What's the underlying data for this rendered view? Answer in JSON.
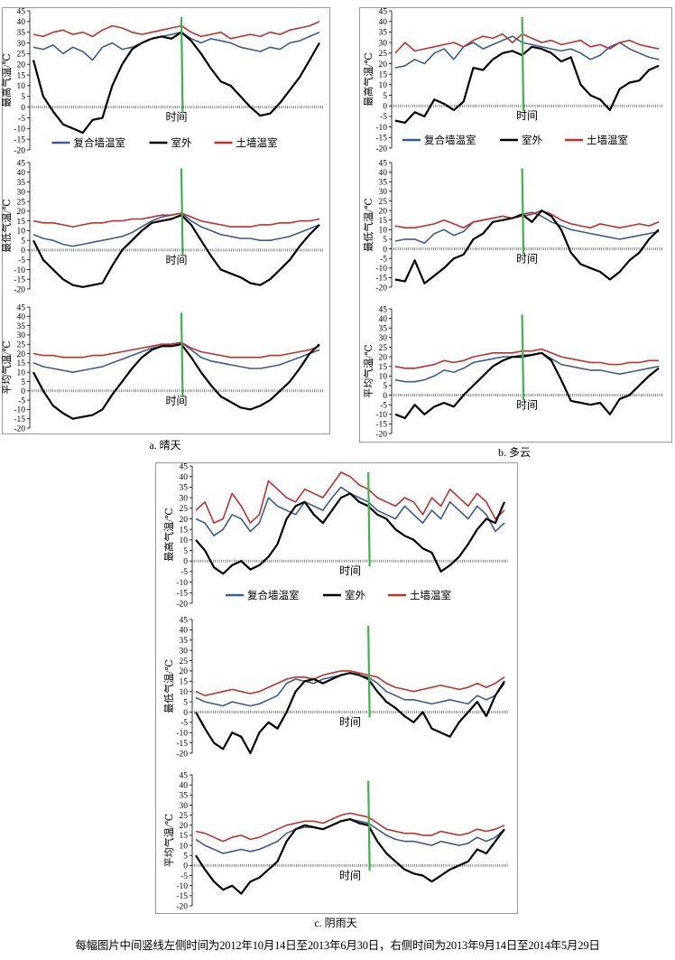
{
  "captions": {
    "a": "a. 晴天",
    "b": "b. 多云",
    "c": "c. 阴雨天"
  },
  "footnote": "每幅图片中间竖线左侧时间为2012年10月14日至2013年6月30日，右侧时间为2013年9月14日至2014年5月29日",
  "legend": {
    "composite": "复合墙温室",
    "outdoor": "室外",
    "soil": "土墙温室"
  },
  "xlabel": "时间",
  "ylabels": {
    "max": "最高气温/℃",
    "min": "最低气温/℃",
    "avg": "平均气温/℃"
  },
  "colors": {
    "composite": "#3b5b93",
    "outdoor": "#000000",
    "soil": "#c0302b",
    "divider": "#3db34a"
  },
  "chart_data": [
    {
      "id": "a-max",
      "type": "line",
      "ylabel": "最高气温/℃",
      "xlabel": "时间",
      "ylim": [
        -20,
        45
      ],
      "yticks": [
        -20,
        -15,
        -10,
        -5,
        0,
        5,
        10,
        15,
        20,
        25,
        30,
        35,
        40,
        45
      ],
      "series": [
        {
          "name": "复合墙温室",
          "values": [
            28,
            27,
            29,
            25,
            28,
            26,
            22,
            28,
            30,
            27,
            28,
            30,
            32,
            33,
            34,
            35,
            32,
            30,
            32,
            31,
            30,
            28,
            27,
            26,
            28,
            27,
            30,
            31,
            33,
            35
          ]
        },
        {
          "name": "室外",
          "values": [
            22,
            5,
            -2,
            -8,
            -10,
            -12,
            -6,
            -5,
            10,
            20,
            27,
            30,
            32,
            33,
            32,
            35,
            31,
            25,
            18,
            12,
            10,
            5,
            0,
            -4,
            -3,
            2,
            8,
            14,
            22,
            30
          ]
        },
        {
          "name": "土墙温室",
          "values": [
            34,
            33,
            35,
            36,
            34,
            35,
            33,
            36,
            38,
            37,
            35,
            34,
            35,
            36,
            37,
            38,
            35,
            33,
            34,
            35,
            32,
            33,
            34,
            33,
            35,
            34,
            36,
            37,
            38,
            40
          ]
        }
      ],
      "divider_index": 15
    },
    {
      "id": "a-min",
      "type": "line",
      "ylabel": "最低气温/℃",
      "xlabel": "时间",
      "ylim": [
        -20,
        45
      ],
      "yticks": [
        -20,
        -15,
        -10,
        -5,
        0,
        5,
        10,
        15,
        20,
        25,
        30,
        35,
        40,
        45
      ],
      "series": [
        {
          "name": "复合墙温室",
          "values": [
            8,
            6,
            5,
            3,
            2,
            3,
            4,
            5,
            6,
            7,
            9,
            12,
            15,
            17,
            18,
            19,
            15,
            12,
            10,
            8,
            7,
            6,
            6,
            5,
            5,
            6,
            7,
            9,
            11,
            13
          ]
        },
        {
          "name": "室外",
          "values": [
            5,
            -5,
            -10,
            -15,
            -18,
            -19,
            -18,
            -17,
            -8,
            0,
            5,
            10,
            14,
            15,
            16,
            18,
            13,
            5,
            -3,
            -10,
            -12,
            -14,
            -17,
            -18,
            -15,
            -10,
            -5,
            2,
            8,
            13
          ]
        },
        {
          "name": "土墙温室",
          "values": [
            15,
            14,
            14,
            13,
            12,
            13,
            14,
            14,
            15,
            15,
            16,
            16,
            17,
            18,
            18,
            19,
            17,
            15,
            14,
            13,
            12,
            12,
            12,
            13,
            13,
            14,
            14,
            15,
            15,
            16
          ]
        }
      ],
      "divider_index": 15
    },
    {
      "id": "a-avg",
      "type": "line",
      "ylabel": "平均气温/℃",
      "xlabel": "时间",
      "ylim": [
        -20,
        45
      ],
      "yticks": [
        -20,
        -15,
        -10,
        -5,
        0,
        5,
        10,
        15,
        20,
        25,
        30,
        35,
        40,
        45
      ],
      "series": [
        {
          "name": "复合墙温室",
          "values": [
            15,
            13,
            12,
            11,
            10,
            11,
            12,
            13,
            15,
            17,
            19,
            21,
            23,
            24,
            25,
            26,
            22,
            18,
            16,
            15,
            14,
            13,
            12,
            12,
            13,
            14,
            16,
            18,
            20,
            22
          ]
        },
        {
          "name": "室外",
          "values": [
            10,
            0,
            -8,
            -12,
            -15,
            -14,
            -13,
            -10,
            -2,
            5,
            12,
            18,
            22,
            24,
            24,
            25,
            18,
            10,
            3,
            -3,
            -6,
            -9,
            -10,
            -8,
            -5,
            0,
            5,
            12,
            20,
            25
          ]
        },
        {
          "name": "土墙温室",
          "values": [
            20,
            19,
            19,
            18,
            18,
            18,
            19,
            19,
            20,
            21,
            22,
            23,
            24,
            25,
            25,
            26,
            23,
            21,
            20,
            19,
            18,
            18,
            18,
            18,
            19,
            19,
            20,
            21,
            22,
            24
          ]
        }
      ],
      "divider_index": 15
    },
    {
      "id": "b-max",
      "type": "line",
      "ylabel": "最高气温/℃",
      "xlabel": "时间",
      "ylim": [
        -20,
        45
      ],
      "yticks": [
        -20,
        -15,
        -10,
        -5,
        0,
        5,
        10,
        15,
        20,
        25,
        30,
        35,
        40,
        45
      ],
      "series": [
        {
          "name": "复合墙温室",
          "values": [
            18,
            19,
            22,
            20,
            25,
            27,
            22,
            28,
            30,
            27,
            29,
            31,
            33,
            30,
            29,
            28,
            27,
            26,
            27,
            25,
            22,
            24,
            28,
            30,
            27,
            25,
            23,
            22
          ]
        },
        {
          "name": "室外",
          "values": [
            -7,
            -8,
            -3,
            -5,
            3,
            1,
            -2,
            2,
            18,
            17,
            22,
            25,
            26,
            24,
            28,
            27,
            25,
            21,
            23,
            10,
            5,
            3,
            -2,
            8,
            11,
            12,
            17,
            19
          ]
        },
        {
          "name": "土墙温室",
          "values": [
            25,
            30,
            26,
            27,
            28,
            29,
            30,
            28,
            31,
            33,
            32,
            34,
            30,
            34,
            32,
            30,
            31,
            29,
            30,
            31,
            28,
            29,
            27,
            30,
            31,
            29,
            28,
            27
          ]
        }
      ],
      "divider_index": 13
    },
    {
      "id": "b-min",
      "type": "line",
      "ylabel": "最低气温/℃",
      "xlabel": "时间",
      "ylim": [
        -20,
        45
      ],
      "yticks": [
        -20,
        -15,
        -10,
        -5,
        0,
        5,
        10,
        15,
        20,
        25,
        30,
        35,
        40,
        45
      ],
      "series": [
        {
          "name": "复合墙温室",
          "values": [
            4,
            5,
            5,
            3,
            8,
            10,
            7,
            9,
            14,
            15,
            16,
            17,
            16,
            18,
            19,
            17,
            14,
            12,
            10,
            9,
            8,
            7,
            6,
            5,
            6,
            7,
            8,
            9
          ]
        },
        {
          "name": "室外",
          "values": [
            -16,
            -17,
            -6,
            -18,
            -14,
            -10,
            -5,
            -3,
            5,
            8,
            14,
            15,
            16,
            18,
            14,
            20,
            17,
            10,
            -2,
            -8,
            -10,
            -12,
            -16,
            -12,
            -6,
            -2,
            5,
            10
          ]
        },
        {
          "name": "土墙温室",
          "values": [
            12,
            11,
            11,
            12,
            13,
            15,
            13,
            11,
            14,
            15,
            16,
            17,
            16,
            17,
            18,
            20,
            18,
            15,
            13,
            12,
            11,
            13,
            12,
            11,
            12,
            13,
            12,
            14
          ]
        }
      ],
      "divider_index": 13
    },
    {
      "id": "b-avg",
      "type": "line",
      "ylabel": "平均气温/℃",
      "xlabel": "时间",
      "ylim": [
        -20,
        45
      ],
      "yticks": [
        -20,
        -15,
        -10,
        -5,
        0,
        5,
        10,
        15,
        20,
        25,
        30,
        35,
        40,
        45
      ],
      "series": [
        {
          "name": "复合墙温室",
          "values": [
            8,
            7,
            7,
            8,
            10,
            13,
            12,
            14,
            17,
            18,
            19,
            20,
            20,
            21,
            21,
            22,
            19,
            16,
            15,
            14,
            13,
            13,
            12,
            11,
            12,
            13,
            14,
            15
          ]
        },
        {
          "name": "室外",
          "values": [
            -10,
            -12,
            -5,
            -10,
            -6,
            -4,
            -6,
            0,
            5,
            10,
            15,
            18,
            20,
            20,
            21,
            22,
            18,
            8,
            -3,
            -4,
            -5,
            -4,
            -10,
            -2,
            0,
            5,
            10,
            14
          ]
        },
        {
          "name": "土墙温室",
          "values": [
            15,
            14,
            14,
            15,
            16,
            18,
            17,
            18,
            20,
            21,
            22,
            22,
            22,
            23,
            23,
            24,
            22,
            20,
            19,
            18,
            17,
            17,
            16,
            16,
            17,
            17,
            18,
            18
          ]
        }
      ],
      "divider_index": 13
    },
    {
      "id": "c-max",
      "type": "line",
      "ylabel": "最高气温/℃",
      "xlabel": "时间",
      "ylim": [
        -20,
        45
      ],
      "yticks": [
        -20,
        -15,
        -10,
        -5,
        0,
        5,
        10,
        15,
        20,
        25,
        30,
        35,
        40,
        45
      ],
      "series": [
        {
          "name": "复合墙温室",
          "values": [
            20,
            18,
            12,
            15,
            22,
            20,
            14,
            18,
            30,
            26,
            24,
            22,
            28,
            26,
            24,
            30,
            35,
            32,
            30,
            28,
            24,
            22,
            20,
            26,
            22,
            18,
            24,
            20,
            28,
            24,
            20,
            26,
            22,
            14,
            18
          ]
        },
        {
          "name": "室外",
          "values": [
            10,
            5,
            -3,
            -6,
            -2,
            0,
            -4,
            -2,
            2,
            8,
            20,
            26,
            28,
            22,
            18,
            24,
            30,
            32,
            28,
            26,
            22,
            20,
            15,
            12,
            10,
            6,
            4,
            -5,
            -2,
            2,
            8,
            15,
            20,
            18,
            28
          ]
        },
        {
          "name": "土墙温室",
          "values": [
            24,
            28,
            18,
            20,
            32,
            26,
            18,
            22,
            38,
            34,
            30,
            28,
            34,
            32,
            30,
            36,
            42,
            40,
            36,
            34,
            30,
            28,
            26,
            30,
            28,
            22,
            30,
            26,
            34,
            30,
            26,
            32,
            28,
            20,
            24
          ]
        }
      ],
      "divider_index": 19
    },
    {
      "id": "c-min",
      "type": "line",
      "ylabel": "最低气温/℃",
      "xlabel": "时间",
      "ylim": [
        -20,
        45
      ],
      "yticks": [
        -20,
        -15,
        -10,
        -5,
        0,
        5,
        10,
        15,
        20,
        25,
        30,
        35,
        40,
        45
      ],
      "series": [
        {
          "name": "复合墙温室",
          "values": [
            7,
            5,
            4,
            3,
            5,
            4,
            3,
            4,
            6,
            8,
            14,
            16,
            15,
            14,
            16,
            17,
            18,
            19,
            18,
            17,
            14,
            10,
            8,
            6,
            6,
            5,
            4,
            5,
            6,
            5,
            4,
            8,
            6,
            8,
            14
          ]
        },
        {
          "name": "室外",
          "values": [
            0,
            -8,
            -15,
            -18,
            -10,
            -12,
            -20,
            -10,
            -5,
            -8,
            0,
            10,
            15,
            16,
            14,
            16,
            18,
            19,
            18,
            16,
            10,
            5,
            2,
            -2,
            -5,
            0,
            -8,
            -10,
            -12,
            -5,
            0,
            5,
            -2,
            8,
            15
          ]
        },
        {
          "name": "土墙温室",
          "values": [
            10,
            8,
            9,
            10,
            11,
            10,
            9,
            10,
            12,
            14,
            16,
            17,
            17,
            16,
            18,
            19,
            20,
            20,
            19,
            18,
            17,
            14,
            12,
            11,
            10,
            11,
            12,
            13,
            12,
            11,
            12,
            14,
            12,
            14,
            17
          ]
        }
      ],
      "divider_index": 19
    },
    {
      "id": "c-avg",
      "type": "line",
      "ylabel": "平均气温/℃",
      "xlabel": "时间",
      "ylim": [
        -20,
        45
      ],
      "yticks": [
        -20,
        -15,
        -10,
        -5,
        0,
        5,
        10,
        15,
        20,
        25,
        30,
        35,
        40,
        45
      ],
      "series": [
        {
          "name": "复合墙温室",
          "values": [
            13,
            10,
            8,
            6,
            7,
            8,
            7,
            8,
            10,
            12,
            16,
            18,
            19,
            19,
            18,
            20,
            22,
            23,
            22,
            21,
            18,
            15,
            13,
            12,
            12,
            11,
            10,
            12,
            11,
            10,
            11,
            14,
            12,
            14,
            18
          ]
        },
        {
          "name": "室外",
          "values": [
            5,
            -2,
            -8,
            -12,
            -10,
            -14,
            -8,
            -6,
            -2,
            2,
            12,
            18,
            20,
            19,
            18,
            20,
            22,
            23,
            21,
            20,
            12,
            6,
            2,
            -2,
            -4,
            -5,
            -8,
            -5,
            -2,
            0,
            2,
            8,
            6,
            12,
            18
          ]
        },
        {
          "name": "土墙温室",
          "values": [
            17,
            16,
            14,
            12,
            14,
            15,
            13,
            14,
            16,
            18,
            20,
            21,
            22,
            22,
            21,
            23,
            25,
            26,
            25,
            24,
            21,
            18,
            17,
            16,
            16,
            15,
            15,
            17,
            16,
            15,
            16,
            18,
            17,
            18,
            20
          ]
        }
      ],
      "divider_index": 19
    }
  ]
}
